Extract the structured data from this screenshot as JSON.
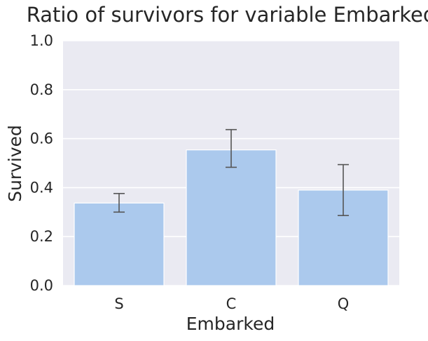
{
  "chart_data": {
    "type": "bar",
    "title": "Ratio of survivors for variable Embarked",
    "xlabel": "Embarked",
    "ylabel": "Survived",
    "categories": [
      "S",
      "C",
      "Q"
    ],
    "values": [
      0.337,
      0.554,
      0.39
    ],
    "error_bars": [
      {
        "low": 0.3,
        "high": 0.376
      },
      {
        "low": 0.483,
        "high": 0.637
      },
      {
        "low": 0.286,
        "high": 0.494
      }
    ],
    "ylim": [
      0.0,
      1.0
    ],
    "yticks": [
      "0.0",
      "0.2",
      "0.4",
      "0.6",
      "0.8",
      "1.0"
    ],
    "grid": true,
    "colors": {
      "bar": "#abc9ed",
      "background": "#eaeaf2",
      "grid": "#ffffff",
      "errorbar": "#555555"
    }
  }
}
